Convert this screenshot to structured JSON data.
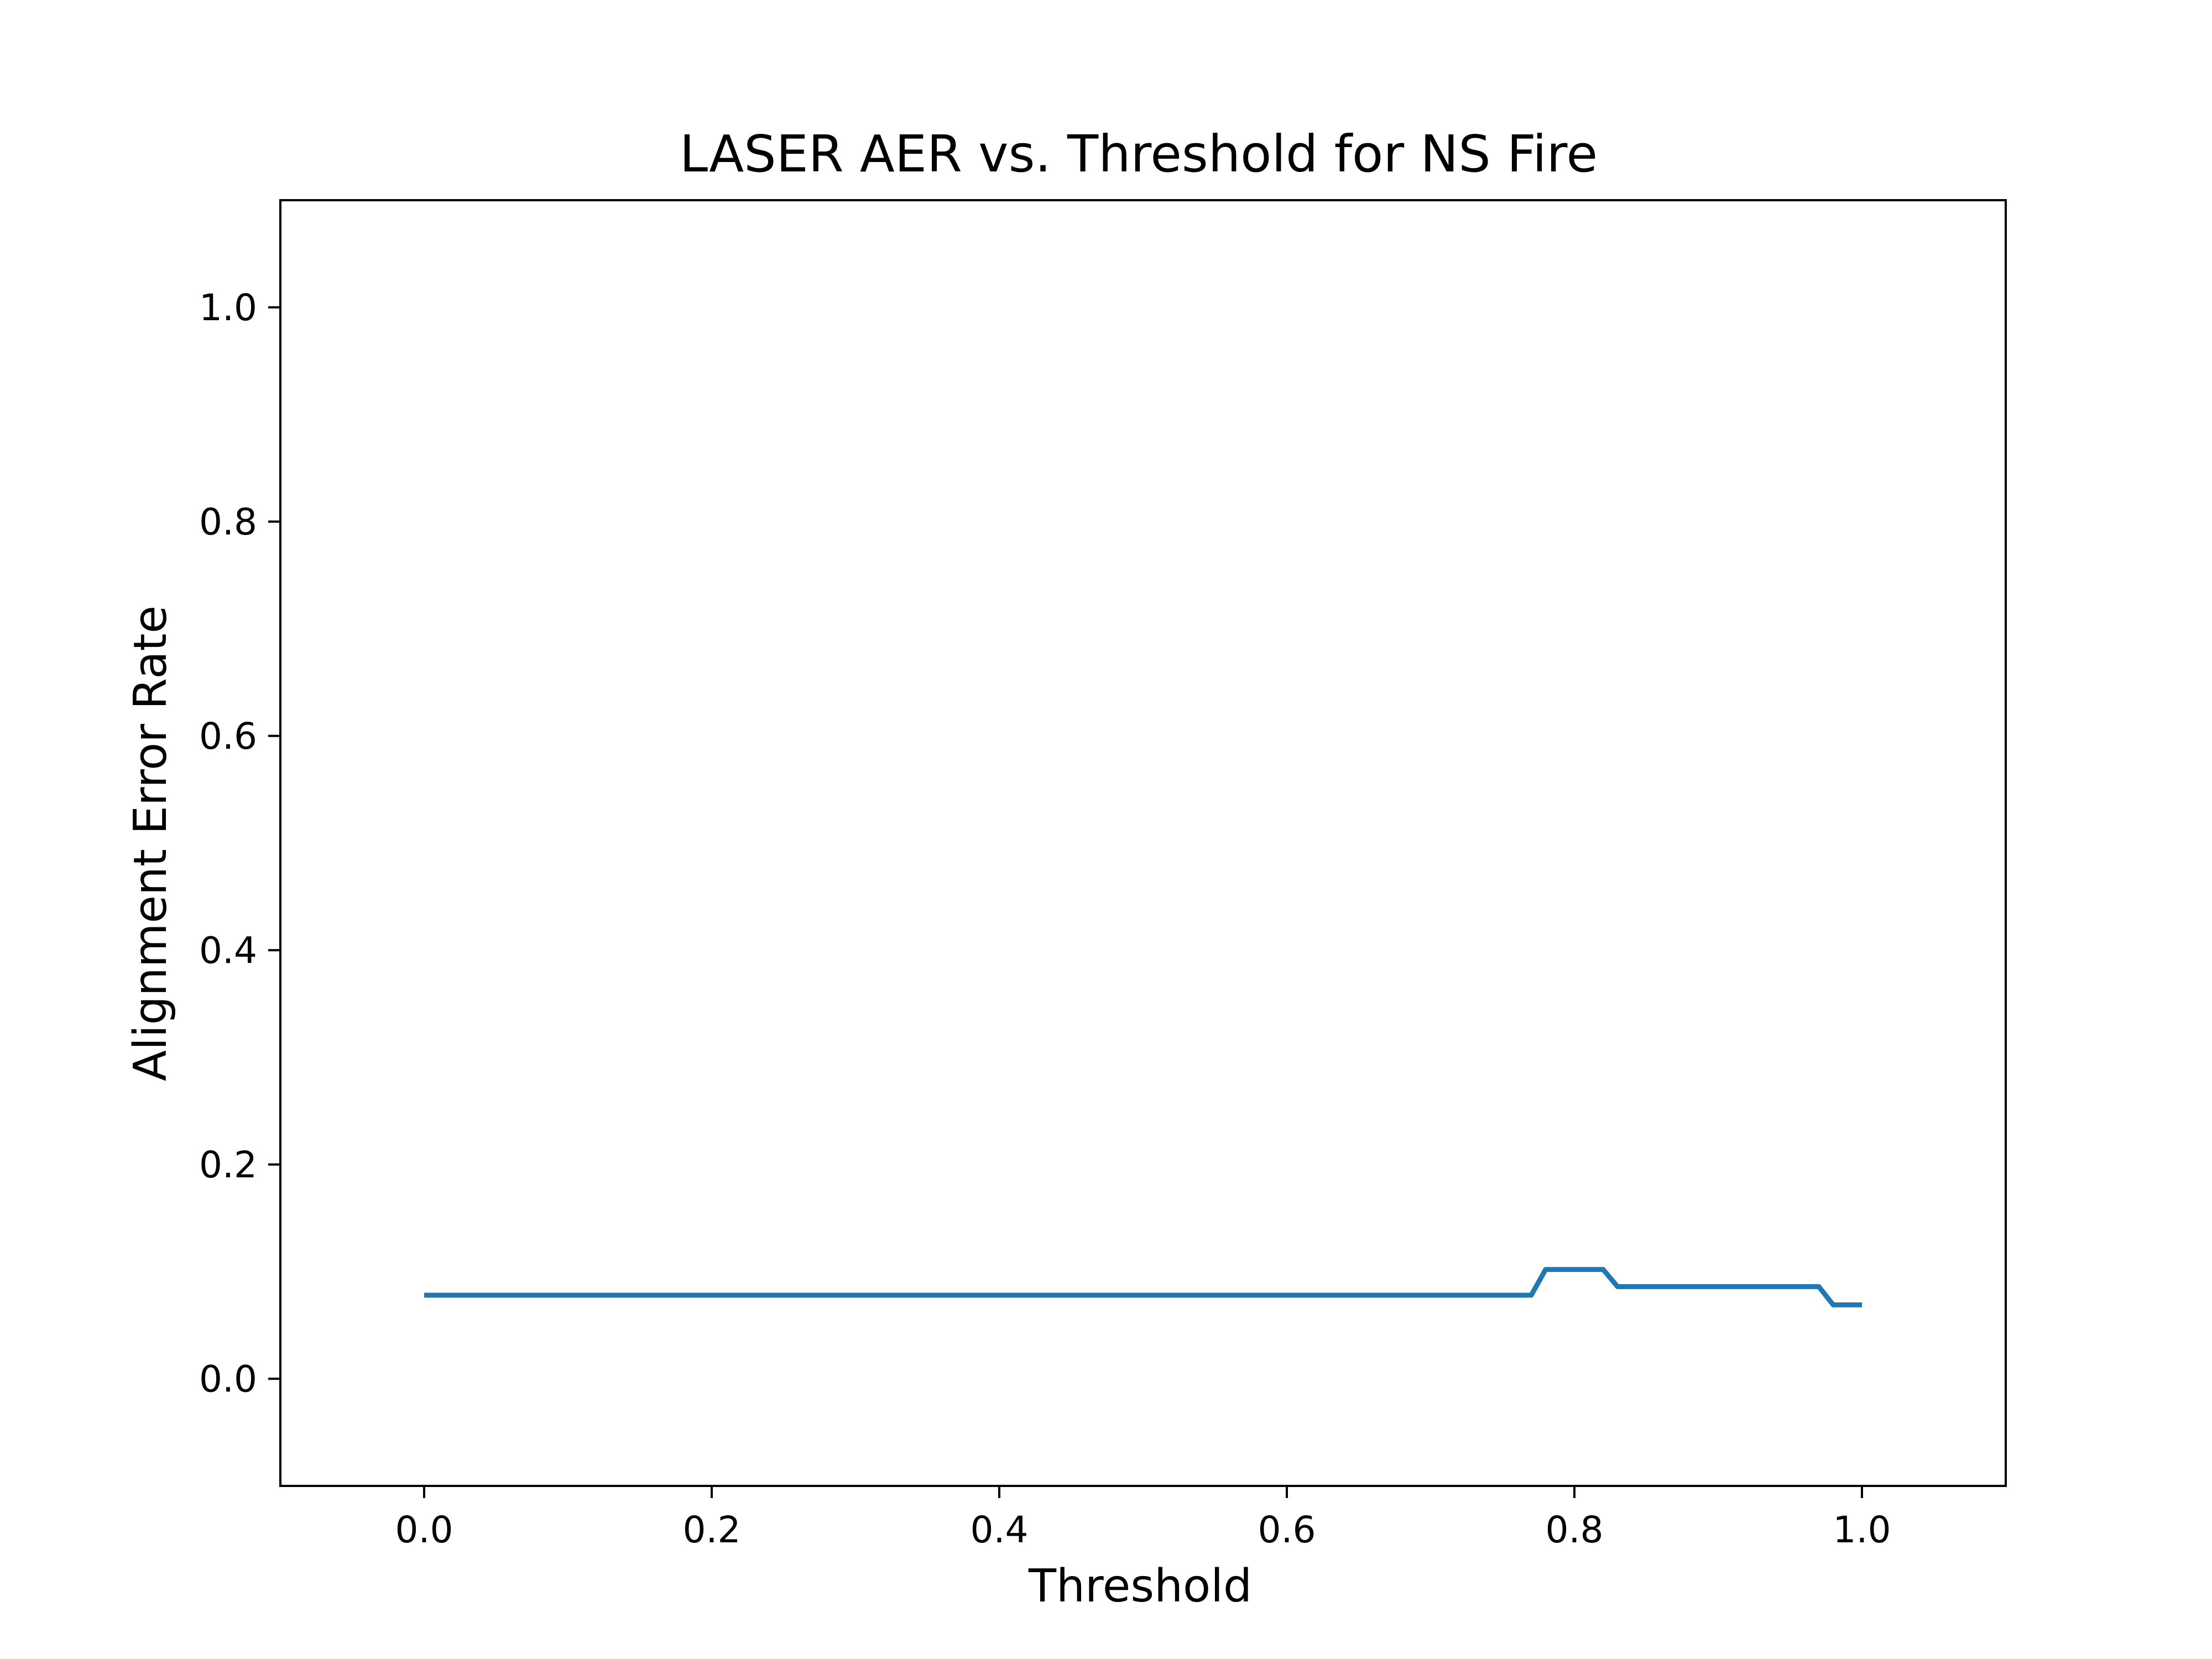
{
  "chart_data": {
    "type": "line",
    "title": "LASER AER vs. Threshold for NS Fire",
    "xlabel": "Threshold",
    "ylabel": "Alignment Error Rate",
    "xlim": [
      -0.1,
      1.1
    ],
    "ylim": [
      -0.1,
      1.1
    ],
    "xticks": [
      "0.0",
      "0.2",
      "0.4",
      "0.6",
      "0.8",
      "1.0"
    ],
    "yticks": [
      "0.0",
      "0.2",
      "0.4",
      "0.6",
      "0.8",
      "1.0"
    ],
    "grid": false,
    "line_color": "#1f77b4",
    "series": [
      {
        "x": [
          0.0,
          0.77,
          0.78,
          0.82,
          0.83,
          0.97,
          0.98,
          1.0
        ],
        "y": [
          0.078,
          0.078,
          0.102,
          0.102,
          0.086,
          0.086,
          0.069,
          0.069
        ]
      }
    ]
  }
}
